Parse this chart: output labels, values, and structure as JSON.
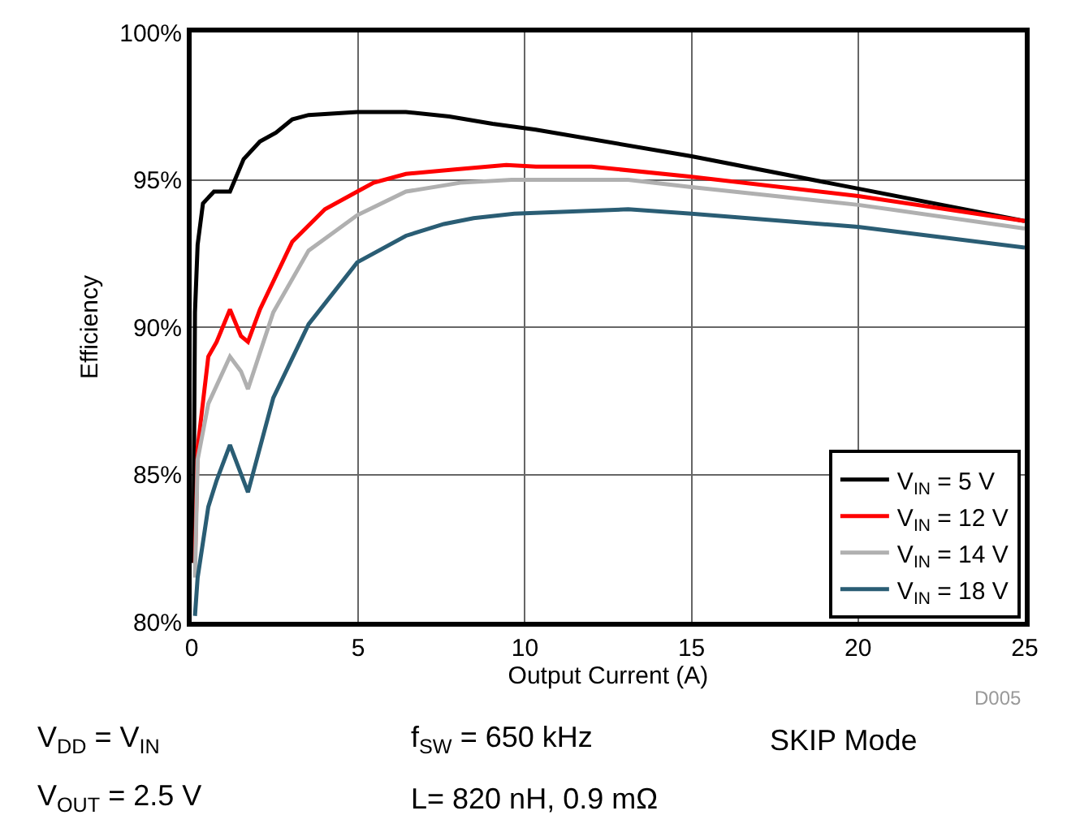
{
  "chart_data": {
    "type": "line",
    "xlabel": "Output Current (A)",
    "ylabel": "Efficiency",
    "xlim": [
      0,
      25
    ],
    "xticks": [
      0,
      5,
      10,
      15,
      20,
      25
    ],
    "ylim": [
      80,
      100
    ],
    "yticks": [
      {
        "value": 80,
        "label": "80%"
      },
      {
        "value": 85,
        "label": "85%"
      },
      {
        "value": 90,
        "label": "90%"
      },
      {
        "value": 95,
        "label": "95%"
      },
      {
        "value": 100,
        "label": "100%"
      }
    ],
    "grid": true,
    "legend": "bottom right",
    "marker": "none",
    "line_style": "solid",
    "series": [
      {
        "name": "V$_{IN}$ = 5 V",
        "color": "#000000",
        "x": [
          0.05,
          0.1,
          0.18,
          0.34,
          0.67,
          1.15,
          1.56,
          2.05,
          2.53,
          3.02,
          3.51,
          4.97,
          6.43,
          7.73,
          9.03,
          10.33,
          15,
          20,
          25
        ],
        "values": [
          82,
          90.5,
          92.8,
          94.2,
          94.6,
          94.6,
          95.7,
          96.3,
          96.6,
          97.05,
          97.2,
          97.3,
          97.3,
          97.15,
          96.9,
          96.7,
          95.8,
          94.7,
          93.6
        ]
      },
      {
        "name": "V$_{IN}$ = 12 V",
        "color": "#ff0000",
        "x": [
          0.1,
          0.18,
          0.5,
          0.75,
          1.15,
          1.48,
          1.69,
          2.05,
          3.02,
          4.0,
          4.97,
          5.46,
          6.43,
          7.9,
          9.44,
          10.33,
          12,
          15,
          20,
          25
        ],
        "values": [
          82,
          85.9,
          89.0,
          89.5,
          90.6,
          89.7,
          89.5,
          90.6,
          92.9,
          94.0,
          94.6,
          94.9,
          95.2,
          95.35,
          95.5,
          95.45,
          95.45,
          95.1,
          94.45,
          93.6
        ]
      },
      {
        "name": "V$_{IN}$ = 14 V",
        "color": "#b0b0b0",
        "x": [
          0.1,
          0.18,
          0.5,
          1.15,
          1.48,
          1.69,
          2.45,
          3.51,
          4.97,
          6.43,
          8.06,
          9.6,
          13.1,
          15,
          20,
          25
        ],
        "values": [
          81.5,
          85.5,
          87.4,
          89.0,
          88.5,
          87.9,
          90.5,
          92.6,
          93.8,
          94.6,
          94.9,
          95.0,
          95.0,
          94.75,
          94.15,
          93.35
        ]
      },
      {
        "name": "V$_{IN}$ = 18 V",
        "color": "#2a5d74",
        "x": [
          0.1,
          0.18,
          0.5,
          0.75,
          1.15,
          1.69,
          2.45,
          3.51,
          4.97,
          6.43,
          7.57,
          8.46,
          9.68,
          13.1,
          15,
          20,
          25
        ],
        "values": [
          80.2,
          81.5,
          83.9,
          84.8,
          86.0,
          84.4,
          87.6,
          90.1,
          92.2,
          93.1,
          93.5,
          93.7,
          93.85,
          94.0,
          93.85,
          93.4,
          92.7
        ]
      }
    ],
    "annotations": [
      "D005",
      "V$_{DD}$ = V$_{IN}$",
      "V$_{OUT}$ = 2.5 V",
      "f$_{SW}$ = 650 kHz",
      "L= 820 nH, 0.9 mΩ",
      "SKIP Mode"
    ]
  }
}
